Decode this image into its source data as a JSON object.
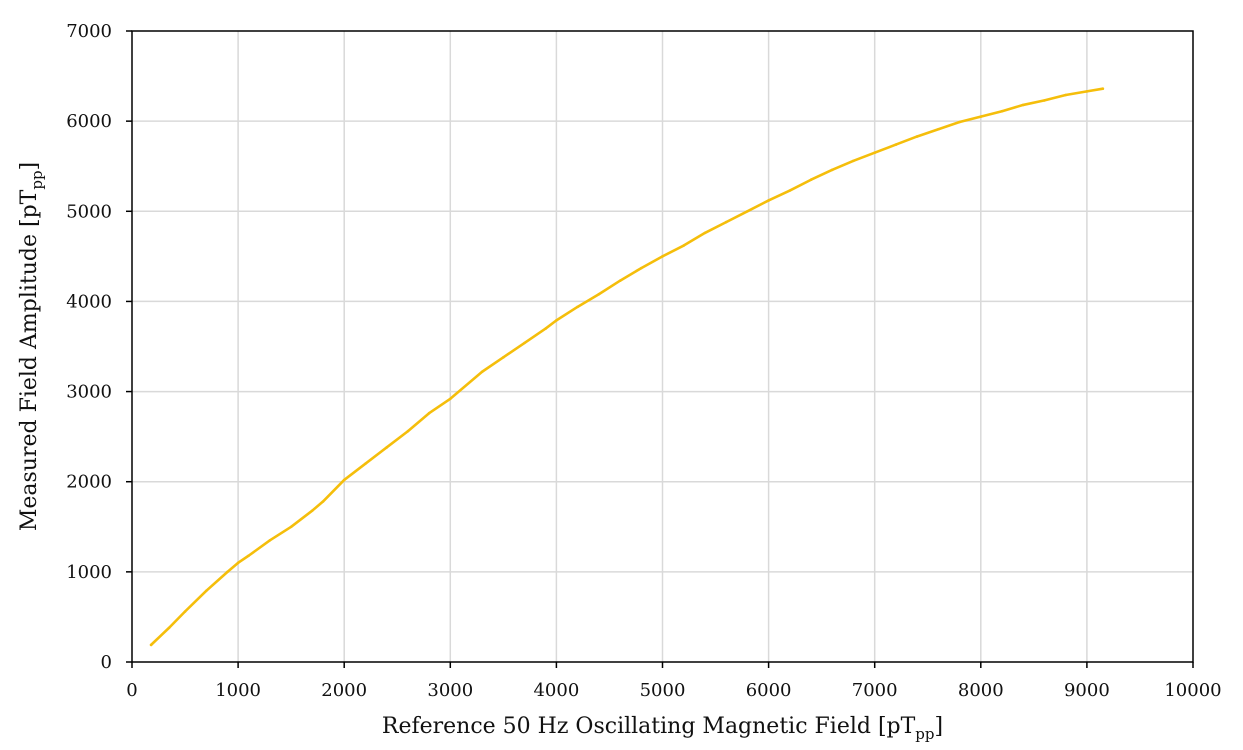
{
  "colors": {
    "series_line": "#F5BE0B",
    "grid": "#D9D9D9",
    "axis": "#000000",
    "text": "#111111"
  },
  "chart_data": {
    "type": "line",
    "title": "",
    "xlabel": {
      "main": "Reference 50 Hz Oscillating Magnetic Field [pT",
      "sub": "pp",
      "close": "]"
    },
    "ylabel": {
      "main": "Measured Field Amplitude [pT",
      "sub": "pp",
      "close": "]"
    },
    "xlim": [
      0,
      10000
    ],
    "ylim": [
      0,
      7000
    ],
    "xticks": [
      0,
      1000,
      2000,
      3000,
      4000,
      5000,
      6000,
      7000,
      8000,
      9000,
      10000
    ],
    "yticks": [
      0,
      1000,
      2000,
      3000,
      4000,
      5000,
      6000,
      7000
    ],
    "xtick_labels": [
      "0",
      "1000",
      "2000",
      "3000",
      "4000",
      "5000",
      "6000",
      "7000",
      "8000",
      "9000",
      "10000"
    ],
    "ytick_labels": [
      "0",
      "1000",
      "2000",
      "3000",
      "4000",
      "5000",
      "6000",
      "7000"
    ],
    "grid": true,
    "legend": "none",
    "series": [
      {
        "color": "#F5BE0B",
        "x": [
          180,
          350,
          500,
          700,
          900,
          1000,
          1100,
          1300,
          1500,
          1700,
          1800,
          2000,
          2200,
          2400,
          2600,
          2800,
          3000,
          3300,
          3500,
          3700,
          3900,
          4000,
          4200,
          4400,
          4600,
          4800,
          5000,
          5200,
          5400,
          5600,
          5800,
          6000,
          6200,
          6400,
          6600,
          6800,
          7000,
          7200,
          7400,
          7600,
          7800,
          8000,
          8200,
          8400,
          8600,
          8800,
          9000,
          9150
        ],
        "y": [
          190,
          380,
          560,
          790,
          1000,
          1100,
          1180,
          1350,
          1500,
          1680,
          1780,
          2020,
          2200,
          2380,
          2560,
          2760,
          2920,
          3220,
          3380,
          3540,
          3700,
          3790,
          3940,
          4080,
          4230,
          4370,
          4500,
          4620,
          4760,
          4880,
          5000,
          5120,
          5230,
          5350,
          5460,
          5560,
          5650,
          5740,
          5830,
          5910,
          5990,
          6050,
          6110,
          6180,
          6230,
          6290,
          6330,
          6360
        ]
      }
    ]
  }
}
